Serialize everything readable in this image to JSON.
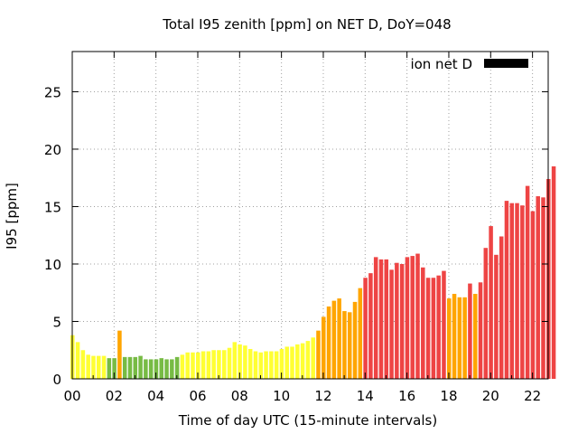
{
  "chart_data": {
    "type": "bar",
    "title": "Total I95 zenith [ppm] on NET D, DoY=048",
    "xlabel": "Time of day UTC (15-minute intervals)",
    "ylabel": "I95 [ppm]",
    "xlim": [
      0,
      22.75
    ],
    "ylim": [
      0,
      28.5
    ],
    "grid": true,
    "legend_position": "top-right",
    "legend": [
      {
        "name": "ion net D",
        "color": "#000000"
      }
    ],
    "x_ticks": [
      {
        "value": 0,
        "label": "00"
      },
      {
        "value": 2,
        "label": "02"
      },
      {
        "value": 4,
        "label": "04"
      },
      {
        "value": 6,
        "label": "06"
      },
      {
        "value": 8,
        "label": "08"
      },
      {
        "value": 10,
        "label": "10"
      },
      {
        "value": 12,
        "label": "12"
      },
      {
        "value": 14,
        "label": "14"
      },
      {
        "value": 16,
        "label": "16"
      },
      {
        "value": 18,
        "label": "18"
      },
      {
        "value": 20,
        "label": "20"
      },
      {
        "value": 22,
        "label": "22"
      }
    ],
    "y_ticks": [
      {
        "value": 0,
        "label": "0"
      },
      {
        "value": 5,
        "label": "5"
      },
      {
        "value": 10,
        "label": "10"
      },
      {
        "value": 15,
        "label": "15"
      },
      {
        "value": 20,
        "label": "20"
      },
      {
        "value": 25,
        "label": "25"
      }
    ],
    "interval_hours": 0.25,
    "values": [
      3.8,
      3.2,
      2.5,
      2.1,
      2.0,
      2.0,
      2.0,
      1.8,
      1.8,
      4.2,
      1.9,
      1.9,
      1.9,
      2.0,
      1.7,
      1.7,
      1.7,
      1.8,
      1.7,
      1.7,
      1.9,
      2.1,
      2.3,
      2.3,
      2.3,
      2.4,
      2.4,
      2.5,
      2.5,
      2.5,
      2.7,
      3.2,
      3.0,
      2.9,
      2.6,
      2.4,
      2.3,
      2.4,
      2.4,
      2.4,
      2.6,
      2.8,
      2.8,
      3.0,
      3.1,
      3.3,
      3.6,
      4.2,
      5.4,
      6.3,
      6.8,
      7.0,
      5.9,
      5.8,
      6.7,
      7.9,
      8.8,
      9.2,
      10.6,
      10.4,
      10.4,
      9.5,
      10.1,
      10.0,
      10.6,
      10.7,
      10.9,
      9.7,
      8.8,
      8.8,
      9.0,
      9.4,
      7.0,
      7.4,
      7.1,
      7.1,
      8.3,
      7.4,
      8.4,
      11.4,
      13.3,
      10.8,
      12.4,
      15.5,
      15.3,
      15.3,
      15.1,
      16.8,
      14.6,
      15.9,
      15.8,
      17.4,
      18.5
    ],
    "colors": [
      "#ffff33",
      "#ffff33",
      "#ffff33",
      "#ffff33",
      "#ffff33",
      "#ffff33",
      "#ffff33",
      "#77bb44",
      "#77bb44",
      "#ffa500",
      "#77bb44",
      "#77bb44",
      "#77bb44",
      "#77bb44",
      "#77bb44",
      "#77bb44",
      "#77bb44",
      "#77bb44",
      "#77bb44",
      "#77bb44",
      "#77bb44",
      "#ffff33",
      "#ffff33",
      "#ffff33",
      "#ffff33",
      "#ffff33",
      "#ffff33",
      "#ffff33",
      "#ffff33",
      "#ffff33",
      "#ffff33",
      "#ffff33",
      "#ffff33",
      "#ffff33",
      "#ffff33",
      "#ffff33",
      "#ffff33",
      "#ffff33",
      "#ffff33",
      "#ffff33",
      "#ffff33",
      "#ffff33",
      "#ffff33",
      "#ffff33",
      "#ffff33",
      "#ffff33",
      "#ffff33",
      "#ffa500",
      "#ffa500",
      "#ffa500",
      "#ffa500",
      "#ffa500",
      "#ffa500",
      "#ffa500",
      "#ffa500",
      "#ffa500",
      "#ee4444",
      "#ee4444",
      "#ee4444",
      "#ee4444",
      "#ee4444",
      "#ee4444",
      "#ee4444",
      "#ee4444",
      "#ee4444",
      "#ee4444",
      "#ee4444",
      "#ee4444",
      "#ee4444",
      "#ee4444",
      "#ee4444",
      "#ee4444",
      "#ffa500",
      "#ffa500",
      "#ffa500",
      "#ffa500",
      "#ee4444",
      "#ffa500",
      "#ee4444",
      "#ee4444",
      "#ee4444",
      "#ee4444",
      "#ee4444",
      "#ee4444",
      "#ee4444",
      "#ee4444",
      "#ee4444",
      "#ee4444",
      "#ee4444",
      "#ee4444",
      "#ee4444",
      "#ee4444",
      "#ee4444"
    ]
  }
}
